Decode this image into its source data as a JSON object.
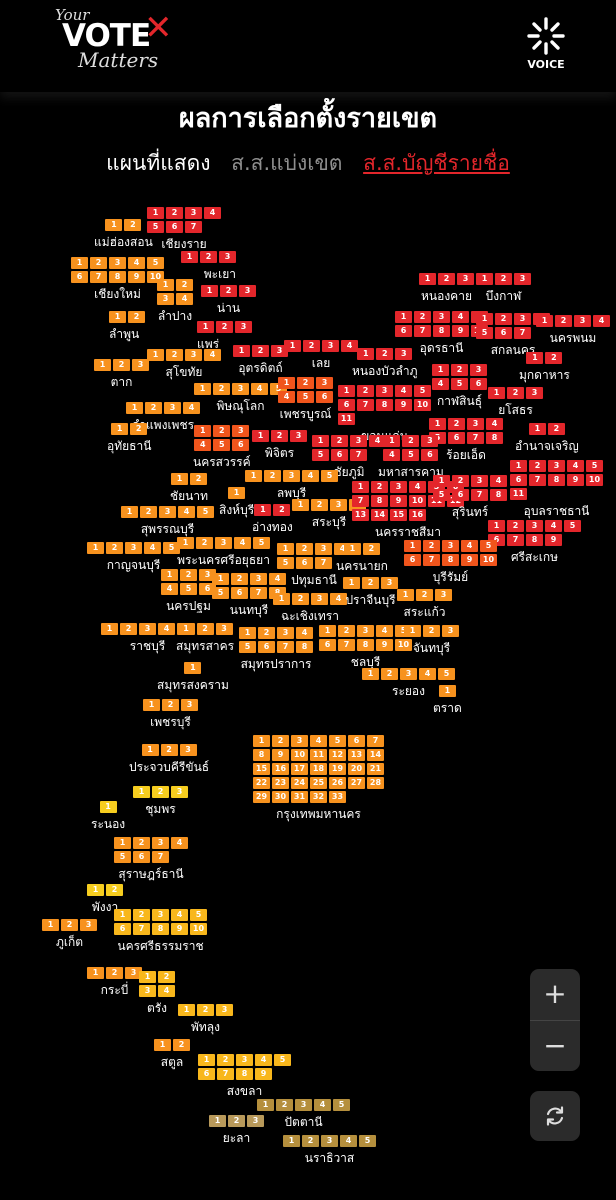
{
  "header": {
    "logo_your": "Your",
    "logo_vote": "VOTE",
    "logo_x": "✕",
    "logo_matters": "Matters",
    "voice_label": "VOICE"
  },
  "title": "ผลการเลือกตั้งรายเขต",
  "map_mode": {
    "label": "แผนที่แสดง",
    "tabs": [
      {
        "label": "ส.ส.แบ่งเขต",
        "active": false
      },
      {
        "label": "ส.ส.บัญชีรายชื่อ",
        "active": true
      }
    ]
  },
  "colors": {
    "red": "#e3262b",
    "orange_red": "#f0551c",
    "orange": "#f7921e",
    "amber": "#f8b71c",
    "yellow": "#f6cd1f",
    "olive": "#b58f3d",
    "tan": "#b8995a",
    "accent": "#e3262b"
  },
  "provinces": [
    {
      "name": "แม่ฮ่องสอน",
      "cols": 2,
      "seats": 2,
      "color": "orange"
    },
    {
      "name": "เชียงราย",
      "cols": 4,
      "seats": 7,
      "color": "red"
    },
    {
      "name": "เชียงใหม่",
      "cols": 5,
      "seats": 10,
      "color": "orange"
    },
    {
      "name": "พะเยา",
      "cols": 3,
      "seats": 3,
      "color": "red"
    },
    {
      "name": "ลำพูน",
      "cols": 2,
      "seats": 2,
      "color": "orange"
    },
    {
      "name": "ลำปาง",
      "cols": 2,
      "seats": 4,
      "color": "orange"
    },
    {
      "name": "น่าน",
      "cols": 3,
      "seats": 3,
      "color": "red"
    },
    {
      "name": "แพร่",
      "cols": 3,
      "seats": 3,
      "color": "red"
    },
    {
      "name": "ตาก",
      "cols": 3,
      "seats": 3,
      "color": "orange"
    },
    {
      "name": "สุโขทัย",
      "cols": 4,
      "seats": 4,
      "color": "orange"
    },
    {
      "name": "อุตรดิตถ์",
      "cols": 3,
      "seats": 3,
      "color": "red"
    },
    {
      "name": "เลย",
      "cols": 4,
      "seats": 4,
      "color": "red"
    },
    {
      "name": "หนองบัวลำภู",
      "cols": 3,
      "seats": 3,
      "color": "red"
    },
    {
      "name": "หนองคาย",
      "cols": 3,
      "seats": 3,
      "color": "red"
    },
    {
      "name": "บึงกาฬ",
      "cols": 3,
      "seats": 3,
      "color": "red"
    },
    {
      "name": "อุดรธานี",
      "cols": 5,
      "seats": 10,
      "color": "red"
    },
    {
      "name": "สกลนคร",
      "cols": 4,
      "seats": 7,
      "color": "red"
    },
    {
      "name": "นครพนม",
      "cols": 4,
      "seats": 4,
      "color": "red"
    },
    {
      "name": "มุกดาหาร",
      "cols": 2,
      "seats": 2,
      "color": "red"
    },
    {
      "name": "กาฬสินธุ์",
      "cols": 3,
      "seats": 6,
      "color": "red"
    },
    {
      "name": "ขอนแก่น",
      "cols": 5,
      "seats": 11,
      "color": "red"
    },
    {
      "name": "ยโสธร",
      "cols": 3,
      "seats": 3,
      "color": "red"
    },
    {
      "name": "พิษณุโลก",
      "cols": 5,
      "seats": 5,
      "color": "orange"
    },
    {
      "name": "เพชรบูรณ์",
      "cols": 3,
      "seats": 6,
      "color": "orange_red"
    },
    {
      "name": "กำแพงเพชร",
      "cols": 4,
      "seats": 4,
      "color": "orange"
    },
    {
      "name": "ร้อยเอ็ด",
      "cols": 4,
      "seats": 8,
      "color": "red"
    },
    {
      "name": "อำนาจเจริญ",
      "cols": 2,
      "seats": 2,
      "color": "red"
    },
    {
      "name": "อุทัยธานี",
      "cols": 2,
      "seats": 2,
      "color": "orange"
    },
    {
      "name": "นครสวรรค์",
      "cols": 3,
      "seats": 6,
      "color": "orange_red"
    },
    {
      "name": "พิจิตร",
      "cols": 3,
      "seats": 3,
      "color": "red"
    },
    {
      "name": "ชัยภูมิ",
      "cols": 4,
      "seats": 7,
      "color": "red"
    },
    {
      "name": "มหาสารคาม",
      "cols": 3,
      "seats": 6,
      "color": "red"
    },
    {
      "name": "อุบลราชธานี",
      "cols": 5,
      "seats": 11,
      "color": "red"
    },
    {
      "name": "ชัยนาท",
      "cols": 2,
      "seats": 2,
      "color": "orange"
    },
    {
      "name": "ลพบุรี",
      "cols": 5,
      "seats": 5,
      "color": "orange"
    },
    {
      "name": "สิงห์บุรี",
      "cols": 1,
      "seats": 1,
      "color": "orange"
    },
    {
      "name": "อ่างทอง",
      "cols": 2,
      "seats": 2,
      "color": "red"
    },
    {
      "name": "สระบุรี",
      "cols": 4,
      "seats": 4,
      "color": "orange"
    },
    {
      "name": "นครราชสีมา",
      "cols": 6,
      "seats": 16,
      "color": "red"
    },
    {
      "name": "สุรินทร์",
      "cols": 4,
      "seats": 8,
      "color": "red"
    },
    {
      "name": "ศรีสะเกษ",
      "cols": 5,
      "seats": 9,
      "color": "red"
    },
    {
      "name": "สุพรรณบุรี",
      "cols": 5,
      "seats": 5,
      "color": "orange"
    },
    {
      "name": "กาญจนบุรี",
      "cols": 5,
      "seats": 5,
      "color": "orange"
    },
    {
      "name": "พระนครศรีอยุธยา",
      "cols": 5,
      "seats": 5,
      "color": "orange"
    },
    {
      "name": "ปทุมธานี",
      "cols": 4,
      "seats": 7,
      "color": "orange"
    },
    {
      "name": "นครนายก",
      "cols": 2,
      "seats": 2,
      "color": "orange"
    },
    {
      "name": "บุรีรัมย์",
      "cols": 5,
      "seats": 10,
      "color": "orange_red"
    },
    {
      "name": "นครปฐม",
      "cols": 3,
      "seats": 6,
      "color": "orange"
    },
    {
      "name": "นนทบุรี",
      "cols": 4,
      "seats": 8,
      "color": "orange"
    },
    {
      "name": "ฉะเชิงเทรา",
      "cols": 4,
      "seats": 4,
      "color": "orange"
    },
    {
      "name": "ปราจีนบุรี",
      "cols": 3,
      "seats": 3,
      "color": "orange"
    },
    {
      "name": "สระแก้ว",
      "cols": 3,
      "seats": 3,
      "color": "orange"
    },
    {
      "name": "ราชบุรี",
      "cols": 5,
      "seats": 5,
      "color": "orange"
    },
    {
      "name": "สมุทรสาคร",
      "cols": 3,
      "seats": 3,
      "color": "orange"
    },
    {
      "name": "สมุทรปราการ",
      "cols": 4,
      "seats": 8,
      "color": "orange"
    },
    {
      "name": "ชลบุรี",
      "cols": 5,
      "seats": 10,
      "color": "orange"
    },
    {
      "name": "จันทบุรี",
      "cols": 3,
      "seats": 3,
      "color": "orange"
    },
    {
      "name": "สมุทรสงคราม",
      "cols": 1,
      "seats": 1,
      "color": "orange"
    },
    {
      "name": "ระยอง",
      "cols": 5,
      "seats": 5,
      "color": "orange"
    },
    {
      "name": "ตราด",
      "cols": 1,
      "seats": 1,
      "color": "orange"
    },
    {
      "name": "เพชรบุรี",
      "cols": 3,
      "seats": 3,
      "color": "orange"
    },
    {
      "name": "กรุงเทพมหานคร",
      "cols": 7,
      "seats": 33,
      "color": "orange"
    },
    {
      "name": "ประจวบคีรีขันธ์",
      "cols": 3,
      "seats": 3,
      "color": "orange"
    },
    {
      "name": "ชุมพร",
      "cols": 3,
      "seats": 3,
      "color": "yellow"
    },
    {
      "name": "ระนอง",
      "cols": 1,
      "seats": 1,
      "color": "yellow"
    },
    {
      "name": "สุราษฎร์ธานี",
      "cols": 4,
      "seats": 7,
      "color": "orange"
    },
    {
      "name": "พังงา",
      "cols": 2,
      "seats": 2,
      "color": "yellow"
    },
    {
      "name": "ภูเก็ต",
      "cols": 3,
      "seats": 3,
      "color": "orange"
    },
    {
      "name": "นครศรีธรรมราช",
      "cols": 5,
      "seats": 10,
      "color": "amber"
    },
    {
      "name": "กระบี่",
      "cols": 3,
      "seats": 3,
      "color": "orange"
    },
    {
      "name": "ตรัง",
      "cols": 2,
      "seats": 4,
      "color": "amber"
    },
    {
      "name": "พัทลุง",
      "cols": 3,
      "seats": 3,
      "color": "amber"
    },
    {
      "name": "สตูล",
      "cols": 2,
      "seats": 2,
      "color": "orange"
    },
    {
      "name": "สงขลา",
      "cols": 5,
      "seats": 9,
      "color": "amber"
    },
    {
      "name": "ปัตตานี",
      "cols": 5,
      "seats": 5,
      "color": "olive"
    },
    {
      "name": "ยะลา",
      "cols": 3,
      "seats": 3,
      "color": "tan"
    },
    {
      "name": "นราธิวาส",
      "cols": 5,
      "seats": 5,
      "color": "olive"
    }
  ],
  "zoom": {
    "in_label": "+",
    "out_label": "−"
  }
}
